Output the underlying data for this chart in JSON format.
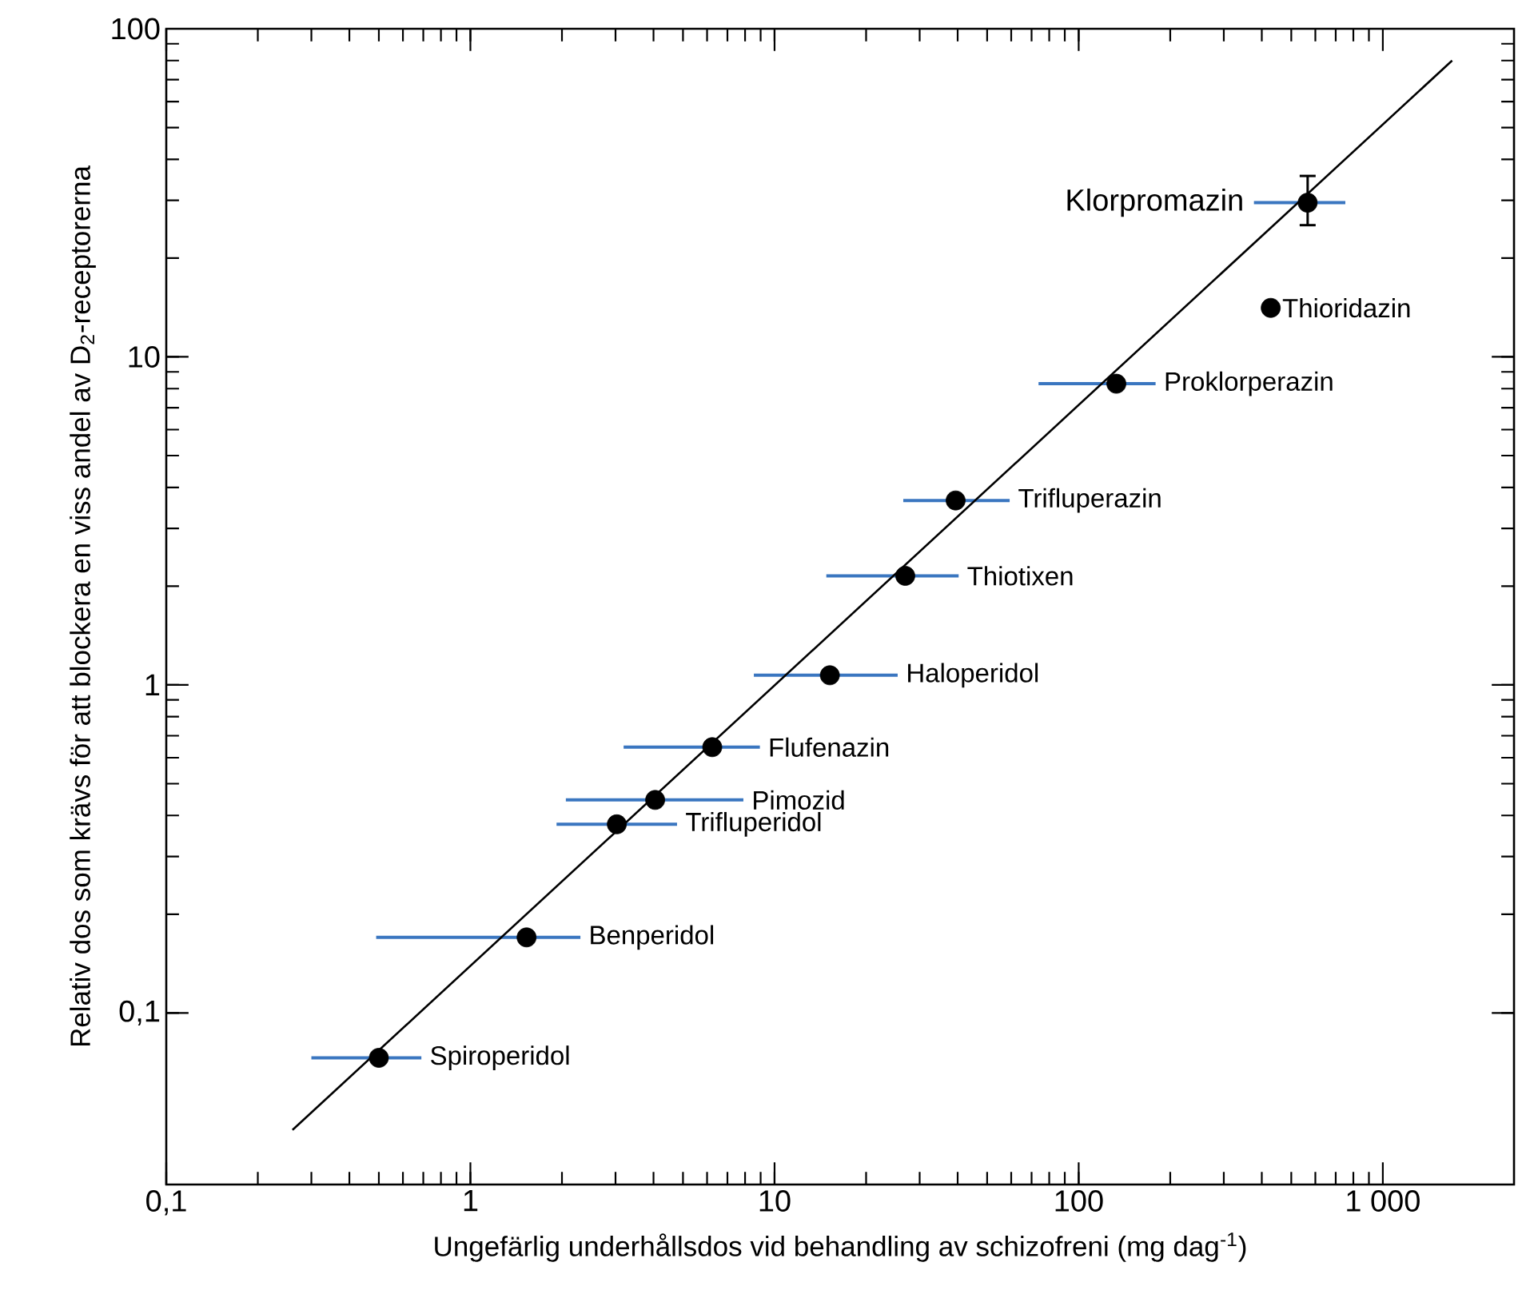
{
  "chart_data": {
    "type": "scatter",
    "log": "xy",
    "xlabel": "Ungefärlig underhållsdos vid behandling av schizofreni (mg dag$^{-1}$)",
    "ylabel": "Relativ dos som krävs för att blockera en viss andel av D$_{2}$-receptorerna",
    "xlim": [
      0.1,
      2700
    ],
    "ylim": [
      0.03,
      100
    ],
    "xticks": [
      {
        "value": 0.1,
        "label": "0,1"
      },
      1,
      10,
      100,
      {
        "value": 1000,
        "label": "1 000"
      }
    ],
    "yticks": [
      {
        "value": 0.1,
        "label": "0,1"
      },
      1,
      10,
      100
    ],
    "series": [
      {
        "color": "#000000",
        "x": [
          0.5,
          1.53,
          3.03,
          4.05,
          6.24,
          15.2,
          26.9,
          39.4,
          133,
          428,
          566
        ],
        "values": [
          0.073,
          0.17,
          0.376,
          0.446,
          0.646,
          1.07,
          2.15,
          3.65,
          8.28,
          14.1,
          29.5
        ],
        "xerrors": [
          [
            0.3,
            0.69
          ],
          [
            0.49,
            2.3
          ],
          [
            1.92,
            4.78
          ],
          [
            2.06,
            7.9
          ],
          [
            3.19,
            8.95
          ],
          [
            8.55,
            25.4
          ],
          [
            14.8,
            40.3
          ],
          [
            26.5,
            59.3
          ],
          [
            73.8,
            179
          ],
          null,
          [
            377,
            753
          ]
        ],
        "errors": [
          null,
          null,
          null,
          null,
          null,
          null,
          null,
          null,
          null,
          null,
          [
            25.2,
            35.6
          ]
        ]
      },
      {
        "type": "line",
        "color": "#000000",
        "x": [
          0.26,
          1690
        ],
        "values": [
          0.044,
          80
        ]
      }
    ],
    "annotations": [
      {
        "text": "Spiroperidol",
        "x": 0.5,
        "y": 0.073
      },
      {
        "text": "Benperidol",
        "x": 1.53,
        "y": 0.17
      },
      {
        "text": "Trifluperidol",
        "x": 3.03,
        "y": 0.376
      },
      "Pimozid",
      {
        "text": "Flufenazin",
        "x": 6.24,
        "y": 0.646
      },
      {
        "text": "Haloperidol",
        "x": 15.2,
        "y": 1.07
      },
      {
        "text": "Thiotixen",
        "x": 26.9,
        "y": 2.15
      },
      {
        "text": "Trifluperazin",
        "x": 39.4,
        "y": 3.65
      },
      {
        "text": "Proklorperazin",
        "x": 133,
        "y": 8.28
      },
      {
        "text": "Thioridazin",
        "x": 428,
        "y": 14.1
      },
      {
        "text": "Klorpromazin",
        "x": 566,
        "y": 29.5
      }
    ]
  }
}
